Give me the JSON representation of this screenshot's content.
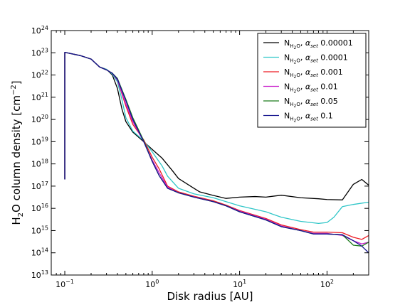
{
  "chart_data": {
    "type": "line",
    "xlabel": "Disk radius [AU]",
    "ylabel": "H2O column density [cm-2]",
    "ylabel_parts": {
      "pre": "H",
      "sub": "2",
      "mid": "O column density [cm",
      "sup": "−2",
      "post": "]"
    },
    "x_scale": "log",
    "y_scale": "log",
    "xlim": [
      0.07,
      300
    ],
    "ylim": [
      10000000000000.0,
      1e+24
    ],
    "x_ticks": [
      {
        "value": 0.1,
        "base": "10",
        "exp": "−1"
      },
      {
        "value": 1,
        "base": "10",
        "exp": "0"
      },
      {
        "value": 10,
        "base": "10",
        "exp": "1"
      },
      {
        "value": 100,
        "base": "10",
        "exp": "2"
      }
    ],
    "y_ticks": [
      {
        "value": 10000000000000.0,
        "base": "10",
        "exp": "13"
      },
      {
        "value": 100000000000000.0,
        "base": "10",
        "exp": "14"
      },
      {
        "value": 1000000000000000.0,
        "base": "10",
        "exp": "15"
      },
      {
        "value": 1e+16,
        "base": "10",
        "exp": "16"
      },
      {
        "value": 1e+17,
        "base": "10",
        "exp": "17"
      },
      {
        "value": 1e+18,
        "base": "10",
        "exp": "18"
      },
      {
        "value": 1e+19,
        "base": "10",
        "exp": "19"
      },
      {
        "value": 1e+20,
        "base": "10",
        "exp": "20"
      },
      {
        "value": 1e+21,
        "base": "10",
        "exp": "21"
      },
      {
        "value": 1e+22,
        "base": "10",
        "exp": "22"
      },
      {
        "value": 1e+23,
        "base": "10",
        "exp": "23"
      },
      {
        "value": 1e+24,
        "base": "10",
        "exp": "24"
      }
    ],
    "grid": false,
    "legend_position": "top-right",
    "series": [
      {
        "name": "N_H2O, α_set 0.00001",
        "label_value": "0.00001",
        "color": "#000000",
        "points": [
          [
            0.1,
            2e+17
          ],
          [
            0.1,
            1.05e+23
          ],
          [
            0.15,
            7.5e+22
          ],
          [
            0.2,
            5.2e+22
          ],
          [
            0.25,
            2.3e+22
          ],
          [
            0.3,
            1.8e+22
          ],
          [
            0.35,
            1e+22
          ],
          [
            0.4,
            2.5e+21
          ],
          [
            0.45,
            3e+20
          ],
          [
            0.5,
            8e+19
          ],
          [
            0.6,
            2.7e+19
          ],
          [
            0.8,
            1e+19
          ],
          [
            1.0,
            4.5e+18
          ],
          [
            1.3,
            1.8e+18
          ],
          [
            1.7,
            5e+17
          ],
          [
            2.0,
            2.2e+17
          ],
          [
            3.0,
            8e+16
          ],
          [
            3.5,
            5.5e+16
          ],
          [
            5.0,
            3.8e+16
          ],
          [
            7.0,
            2.8e+16
          ],
          [
            10.0,
            3.2e+16
          ],
          [
            15.0,
            3.4e+16
          ],
          [
            20.0,
            3.2e+16
          ],
          [
            30.0,
            3.9e+16
          ],
          [
            50.0,
            3e+16
          ],
          [
            80.0,
            2.7e+16
          ],
          [
            100.0,
            2.5e+16
          ],
          [
            150.0,
            2.4e+16
          ],
          [
            200.0,
            1.2e+17
          ],
          [
            250.0,
            2e+17
          ],
          [
            300.0,
            1.1e+17
          ]
        ]
      },
      {
        "name": "N_H2O, α_set 0.0001",
        "label_value": "0.0001",
        "color": "#2fc6c8",
        "points": [
          [
            0.1,
            2e+17
          ],
          [
            0.1,
            1.05e+23
          ],
          [
            0.15,
            7.5e+22
          ],
          [
            0.2,
            5.2e+22
          ],
          [
            0.25,
            2.3e+22
          ],
          [
            0.3,
            1.8e+22
          ],
          [
            0.35,
            1.1e+22
          ],
          [
            0.4,
            5e+21
          ],
          [
            0.45,
            8e+20
          ],
          [
            0.5,
            1.2e+20
          ],
          [
            0.6,
            3e+19
          ],
          [
            0.8,
            1.1e+19
          ],
          [
            1.0,
            3.5e+18
          ],
          [
            1.3,
            8e+17
          ],
          [
            1.5,
            2.8e+17
          ],
          [
            2.0,
            8e+16
          ],
          [
            3.0,
            4.5e+16
          ],
          [
            5.0,
            3e+16
          ],
          [
            7.0,
            2e+16
          ],
          [
            10.0,
            1.3e+16
          ],
          [
            20.0,
            7000000000000000.0
          ],
          [
            30.0,
            4000000000000000.0
          ],
          [
            50.0,
            2600000000000000.0
          ],
          [
            80.0,
            2100000000000000.0
          ],
          [
            100.0,
            2300000000000000.0
          ],
          [
            120.0,
            4000000000000000.0
          ],
          [
            150.0,
            1.2e+16
          ],
          [
            200.0,
            1.5e+16
          ],
          [
            300.0,
            1.9e+16
          ]
        ]
      },
      {
        "name": "N_H2O, α_set 0.001",
        "label_value": "0.001",
        "color": "#ee1c24",
        "points": [
          [
            0.1,
            2e+17
          ],
          [
            0.1,
            1.05e+23
          ],
          [
            0.15,
            7.5e+22
          ],
          [
            0.2,
            5.2e+22
          ],
          [
            0.25,
            2.3e+22
          ],
          [
            0.3,
            1.7e+22
          ],
          [
            0.35,
            1.2e+22
          ],
          [
            0.4,
            6e+21
          ],
          [
            0.5,
            4e+20
          ],
          [
            0.6,
            6e+19
          ],
          [
            0.8,
            1.2e+19
          ],
          [
            1.0,
            2e+18
          ],
          [
            1.2,
            6e+17
          ],
          [
            1.5,
            1e+17
          ],
          [
            2.0,
            5.5e+16
          ],
          [
            3.0,
            3.5e+16
          ],
          [
            5.0,
            2.2e+16
          ],
          [
            7.0,
            1.4e+16
          ],
          [
            10.0,
            8000000000000000.0
          ],
          [
            20.0,
            3500000000000000.0
          ],
          [
            30.0,
            1800000000000000.0
          ],
          [
            50.0,
            1100000000000000.0
          ],
          [
            70.0,
            850000000000000.0
          ],
          [
            100.0,
            850000000000000.0
          ],
          [
            150.0,
            800000000000000.0
          ],
          [
            200.0,
            500000000000000.0
          ],
          [
            250.0,
            400000000000000.0
          ],
          [
            300.0,
            600000000000000.0
          ]
        ]
      },
      {
        "name": "N_H2O, α_set 0.01",
        "label_value": "0.01",
        "color": "#c81ecb",
        "points": [
          [
            0.1,
            2e+17
          ],
          [
            0.1,
            1.05e+23
          ],
          [
            0.15,
            7.5e+22
          ],
          [
            0.2,
            5.2e+22
          ],
          [
            0.25,
            2.3e+22
          ],
          [
            0.3,
            1.7e+22
          ],
          [
            0.35,
            1.2e+22
          ],
          [
            0.4,
            6e+21
          ],
          [
            0.5,
            5e+20
          ],
          [
            0.6,
            8e+19
          ],
          [
            0.8,
            1e+19
          ],
          [
            1.0,
            1.5e+18
          ],
          [
            1.2,
            4e+17
          ],
          [
            1.5,
            9e+16
          ],
          [
            2.0,
            5e+16
          ],
          [
            3.0,
            3.3e+16
          ],
          [
            5.0,
            2e+16
          ],
          [
            7.0,
            1.3e+16
          ],
          [
            10.0,
            7500000000000000.0
          ],
          [
            20.0,
            3200000000000000.0
          ],
          [
            30.0,
            1600000000000000.0
          ],
          [
            50.0,
            1000000000000000.0
          ],
          [
            70.0,
            750000000000000.0
          ],
          [
            100.0,
            750000000000000.0
          ],
          [
            150.0,
            600000000000000.0
          ],
          [
            200.0,
            350000000000000.0
          ],
          [
            250.0,
            250000000000000.0
          ],
          [
            300.0,
            300000000000000.0
          ]
        ]
      },
      {
        "name": "N_H2O, α_set 0.05",
        "label_value": "0.05",
        "color": "#1b7a1b",
        "points": [
          [
            0.1,
            2e+17
          ],
          [
            0.1,
            1.05e+23
          ],
          [
            0.15,
            7.5e+22
          ],
          [
            0.2,
            5.2e+22
          ],
          [
            0.25,
            2.3e+22
          ],
          [
            0.3,
            1.7e+22
          ],
          [
            0.35,
            1.2e+22
          ],
          [
            0.4,
            7e+21
          ],
          [
            0.5,
            8e+20
          ],
          [
            0.6,
            1.2e+20
          ],
          [
            0.8,
            1.1e+19
          ],
          [
            1.0,
            1.3e+18
          ],
          [
            1.2,
            3e+17
          ],
          [
            1.5,
            8e+16
          ],
          [
            2.0,
            5e+16
          ],
          [
            3.0,
            3.2e+16
          ],
          [
            5.0,
            2e+16
          ],
          [
            7.0,
            1.3e+16
          ],
          [
            10.0,
            7000000000000000.0
          ],
          [
            20.0,
            3000000000000000.0
          ],
          [
            30.0,
            1500000000000000.0
          ],
          [
            50.0,
            1000000000000000.0
          ],
          [
            70.0,
            700000000000000.0
          ],
          [
            100.0,
            700000000000000.0
          ],
          [
            150.0,
            650000000000000.0
          ],
          [
            200.0,
            220000000000000.0
          ],
          [
            250.0,
            200000000000000.0
          ],
          [
            300.0,
            300000000000000.0
          ]
        ]
      },
      {
        "name": "N_H2O, α_set 0.1",
        "label_value": "0.1",
        "color": "#17168f",
        "points": [
          [
            0.1,
            2e+17
          ],
          [
            0.1,
            1.05e+23
          ],
          [
            0.15,
            7.5e+22
          ],
          [
            0.2,
            5.2e+22
          ],
          [
            0.25,
            2.3e+22
          ],
          [
            0.3,
            1.7e+22
          ],
          [
            0.35,
            1.2e+22
          ],
          [
            0.4,
            6.5e+21
          ],
          [
            0.5,
            7e+20
          ],
          [
            0.6,
            1e+20
          ],
          [
            0.8,
            1e+19
          ],
          [
            1.0,
            1.3e+18
          ],
          [
            1.2,
            3e+17
          ],
          [
            1.5,
            8e+16
          ],
          [
            2.0,
            5e+16
          ],
          [
            3.0,
            3.2e+16
          ],
          [
            5.0,
            2e+16
          ],
          [
            7.0,
            1.3e+16
          ],
          [
            10.0,
            7000000000000000.0
          ],
          [
            20.0,
            3000000000000000.0
          ],
          [
            30.0,
            1500000000000000.0
          ],
          [
            50.0,
            1000000000000000.0
          ],
          [
            70.0,
            700000000000000.0
          ],
          [
            100.0,
            700000000000000.0
          ],
          [
            150.0,
            650000000000000.0
          ],
          [
            200.0,
            350000000000000.0
          ],
          [
            250.0,
            200000000000000.0
          ],
          [
            300.0,
            100000000000000.0
          ]
        ]
      }
    ]
  }
}
